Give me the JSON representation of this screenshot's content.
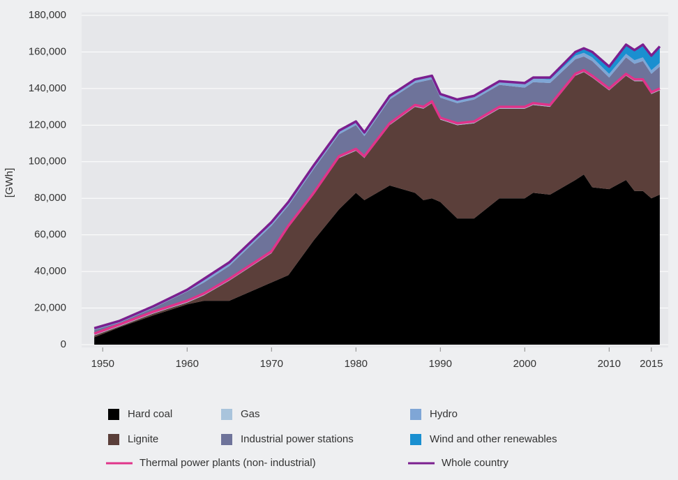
{
  "chart_data": {
    "type": "stacked-area",
    "y_label": "[GWh]",
    "x": [
      1949,
      1952,
      1956,
      1960,
      1962,
      1965,
      1970,
      1972,
      1975,
      1978,
      1980,
      1981,
      1984,
      1987,
      1988,
      1989,
      1990,
      1992,
      1994,
      1997,
      2000,
      2001,
      2003,
      2006,
      2007,
      2008,
      2010,
      2012,
      2013,
      2014,
      2015,
      2016
    ],
    "series": [
      {
        "name": "Hard coal",
        "color": "#000000",
        "values": [
          4000,
          9500,
          16000,
          22000,
          24000,
          24000,
          34000,
          38000,
          57000,
          74000,
          83000,
          79000,
          87000,
          83000,
          79000,
          80000,
          78000,
          69000,
          69000,
          80000,
          80000,
          83000,
          82000,
          90000,
          93000,
          86000,
          85000,
          90000,
          84000,
          84000,
          80000,
          82000
        ]
      },
      {
        "name": "Lignite",
        "color": "#5b3f3a",
        "values": [
          1000,
          500,
          1000,
          1000,
          3000,
          11000,
          16000,
          26000,
          25000,
          28000,
          23000,
          23000,
          33000,
          47000,
          50000,
          52000,
          45000,
          51000,
          52000,
          49000,
          49000,
          48000,
          48000,
          57000,
          56000,
          60000,
          54000,
          57000,
          60000,
          60000,
          57000,
          57000
        ]
      },
      {
        "name": "Gas",
        "color": "#a9c4dc",
        "values": [
          1000,
          1000,
          1000,
          1000,
          1000,
          1000,
          1000,
          1000,
          1000,
          1000,
          1000,
          1000,
          1000,
          1000,
          1000,
          1000,
          1000,
          1000,
          1000,
          1000,
          1000,
          1000,
          1000,
          1000,
          1000,
          1000,
          1000,
          1000,
          1000,
          1000,
          1000,
          1000
        ]
      },
      {
        "name": "Industrial power stations",
        "color": "#6e739a",
        "values": [
          2000,
          1000,
          2000,
          5000,
          6000,
          7000,
          14000,
          11000,
          13000,
          12000,
          13000,
          11000,
          13000,
          12000,
          14000,
          12000,
          11000,
          11000,
          12000,
          12000,
          10500,
          11500,
          12000,
          8000,
          7500,
          8000,
          6000,
          9000,
          8500,
          10000,
          10000,
          12000
        ]
      },
      {
        "name": "Hydro",
        "color": "#7fa6d6",
        "values": [
          1000,
          1000,
          1000,
          1000,
          2000,
          2000,
          2000,
          2000,
          2000,
          2000,
          2000,
          2000,
          2000,
          2000,
          2000,
          2000,
          2000,
          2000,
          2000,
          2000,
          2000,
          2000,
          2000,
          2000,
          2000,
          2000,
          2000,
          2000,
          2000,
          2000,
          2000,
          2000
        ]
      },
      {
        "name": "Wind and other renewables",
        "color": "#1a8fd0",
        "values": [
          0,
          0,
          0,
          0,
          0,
          0,
          0,
          0,
          0,
          0,
          0,
          0,
          0,
          0,
          0,
          0,
          0,
          0,
          0,
          0,
          500,
          500,
          1000,
          2000,
          2500,
          3000,
          4000,
          5000,
          5500,
          7000,
          8000,
          9000
        ]
      }
    ],
    "lines": [
      {
        "name": "Thermal power plants (non- industrial)",
        "color": "#e0348a",
        "values": [
          6000,
          11000,
          18000,
          24000,
          28000,
          36000,
          51000,
          65000,
          83000,
          103000,
          107000,
          103000,
          121000,
          131000,
          130000,
          133000,
          124000,
          121000,
          122000,
          130000,
          130000,
          132000,
          131000,
          148000,
          150000,
          147000,
          140000,
          148000,
          145000,
          145000,
          138000,
          140000
        ]
      },
      {
        "name": "Whole country",
        "color": "#7b1f8f",
        "values": [
          9000,
          13000,
          21000,
          30000,
          36000,
          45000,
          67000,
          78000,
          98000,
          117000,
          122000,
          116000,
          136000,
          145000,
          146000,
          147000,
          137000,
          134000,
          136000,
          144000,
          143000,
          146000,
          146000,
          160000,
          162000,
          160000,
          152000,
          164000,
          161000,
          164000,
          158000,
          163000
        ]
      }
    ],
    "xlim": [
      1947.5,
      2017
    ],
    "xticks": [
      1950,
      1960,
      1970,
      1980,
      1990,
      2000,
      2010,
      2015
    ],
    "ylim": [
      0,
      180000
    ],
    "yticks": [
      0,
      {
        "value": 20000,
        "label": "20,000"
      },
      {
        "value": 40000,
        "label": "40,000"
      },
      {
        "value": 60000,
        "label": "60,000"
      },
      {
        "value": 80000,
        "label": "80,000"
      },
      {
        "value": 100000,
        "label": "100,000"
      },
      {
        "value": 120000,
        "label": "120,000"
      },
      {
        "value": 140000,
        "label": "140,000"
      },
      {
        "value": 160000,
        "label": "160,000"
      },
      {
        "value": 180000,
        "label": "180,000"
      }
    ],
    "grid": true
  }
}
